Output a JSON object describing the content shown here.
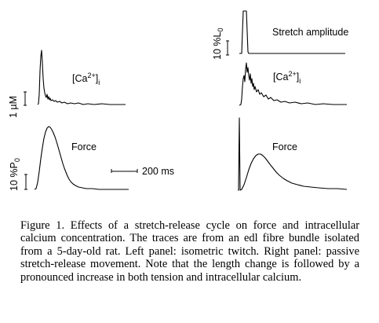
{
  "figure": {
    "left_panel": {
      "ca_label_main": "[Ca",
      "ca_label_sup": "2+",
      "ca_label_tail": "]",
      "ca_label_sub": "i",
      "ca_scale_label": "1 µM",
      "force_label": "Force",
      "force_scale_main": "10 %P",
      "force_scale_sub": "0",
      "time_scale_label": "200 ms"
    },
    "right_panel": {
      "stretch_label": "Stretch amplitude",
      "stretch_scale_main": "10 %L",
      "stretch_scale_sub": "0",
      "ca_label_main": "[Ca",
      "ca_label_sup": "2+",
      "ca_label_tail": "]",
      "ca_label_sub": "i",
      "force_label": "Force"
    }
  },
  "caption": {
    "label": "Figure 1.",
    "text": "Effects of a stretch-release cycle on force and intracellular calcium concentration. The traces are from an edl fibre bundle isolated from a 5-day-old rat. Left panel: isometric twitch. Right panel: passive stretch-release movement. Note that the length change is followed by a pronounced increase in both tension and intracellular calcium."
  }
}
